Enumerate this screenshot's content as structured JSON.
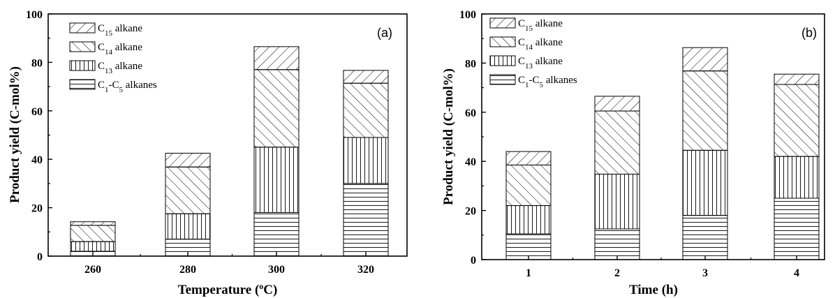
{
  "chart_data": [
    {
      "type": "bar",
      "stacked": true,
      "panel_label": "(a)",
      "xlabel": "Temperature (",
      "xlabel_sup": "o",
      "xlabel_end": "C)",
      "ylabel": "Product yield (C-mol%)",
      "ylim": [
        0,
        100
      ],
      "yticks": [
        "0",
        "20",
        "40",
        "60",
        "80",
        "100"
      ],
      "categories": [
        "260",
        "280",
        "300",
        "320"
      ],
      "legend_position": "top-left",
      "series": [
        {
          "name": "C1-C5 alkanes",
          "sub_parts": [
            "C",
            "1",
            "-C",
            "5",
            " alkanes"
          ],
          "pattern": "horizontal",
          "values": [
            2.0,
            7.0,
            18.0,
            30.0
          ]
        },
        {
          "name": "C13 alkane",
          "sub_parts": [
            "C",
            "13",
            " alkane"
          ],
          "pattern": "vertical",
          "values": [
            4.0,
            10.5,
            27.0,
            19.0
          ]
        },
        {
          "name": "C14 alkane",
          "sub_parts": [
            "C",
            "14",
            " alkane"
          ],
          "pattern": "backslash",
          "values": [
            6.7,
            19.3,
            32.0,
            22.4
          ]
        },
        {
          "name": "C15 alkane",
          "sub_parts": [
            "C",
            "15",
            " alkane"
          ],
          "pattern": "slash",
          "values": [
            1.5,
            5.7,
            9.5,
            5.3
          ]
        }
      ]
    },
    {
      "type": "bar",
      "stacked": true,
      "panel_label": "(b)",
      "xlabel": "Time (h)",
      "ylabel": "Product yield (C-mol%)",
      "ylim": [
        0,
        100
      ],
      "yticks": [
        "0",
        "20",
        "40",
        "60",
        "80",
        "100"
      ],
      "categories": [
        "1",
        "2",
        "3",
        "4"
      ],
      "legend_position": "top-left",
      "series": [
        {
          "name": "C1-C5 alkanes",
          "sub_parts": [
            "C",
            "1",
            "-C",
            "5",
            " alkanes"
          ],
          "pattern": "horizontal",
          "values": [
            10.5,
            12.5,
            18.0,
            25.0
          ]
        },
        {
          "name": "C13 alkane",
          "sub_parts": [
            "C",
            "13",
            " alkane"
          ],
          "pattern": "vertical",
          "values": [
            11.5,
            22.3,
            26.5,
            17.0
          ]
        },
        {
          "name": "C14 alkane",
          "sub_parts": [
            "C",
            "14",
            " alkane"
          ],
          "pattern": "backslash",
          "values": [
            16.5,
            25.7,
            32.3,
            29.3
          ]
        },
        {
          "name": "C15 alkane",
          "sub_parts": [
            "C",
            "15",
            " alkane"
          ],
          "pattern": "slash",
          "values": [
            5.5,
            6.0,
            9.5,
            4.2
          ]
        }
      ]
    }
  ]
}
